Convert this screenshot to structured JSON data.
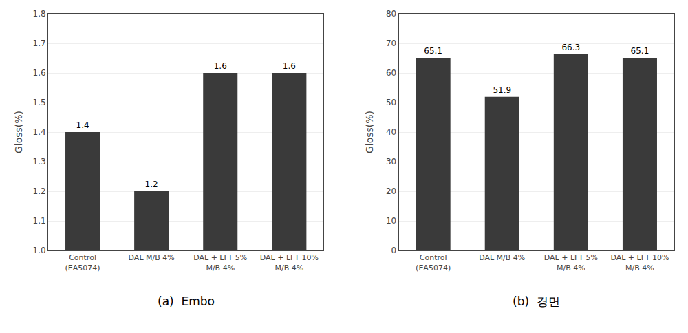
{
  "chart_data": [
    {
      "type": "bar",
      "title": "(a)  Embo",
      "categories": [
        "Control\n(EA5074)",
        "DAL M/B 4%",
        "DAL + LFT 5%\nM/B 4%",
        "DAL + LFT 10%\nM/B 4%"
      ],
      "values": [
        1.4,
        1.2,
        1.6,
        1.6
      ],
      "color": "#3a3a3a",
      "y_label": "Gloss(%)",
      "ylim": [
        1.0,
        1.8
      ],
      "yticks": [
        {
          "value": 1.0,
          "label": "1.0"
        },
        1.1,
        1.2,
        1.3,
        1.4,
        1.5,
        1.6,
        1.7,
        1.8
      ],
      "grid": true,
      "data_labels": true
    },
    {
      "type": "bar",
      "title": "(b)  경면",
      "categories": [
        "Control\n(EA5074)",
        "DAL M/B 4%",
        "DAL + LFT 5%\nM/B 4%",
        "DAL + LFT 10%\nM/B 4%"
      ],
      "values": [
        65.1,
        51.9,
        66.3,
        65.1
      ],
      "color": "#3a3a3a",
      "y_label": "Gloss(%)",
      "ylim": [
        0,
        80
      ],
      "yticks": [
        0,
        10,
        20,
        30,
        40,
        50,
        60,
        70,
        80
      ],
      "grid": true,
      "data_labels": true
    }
  ]
}
